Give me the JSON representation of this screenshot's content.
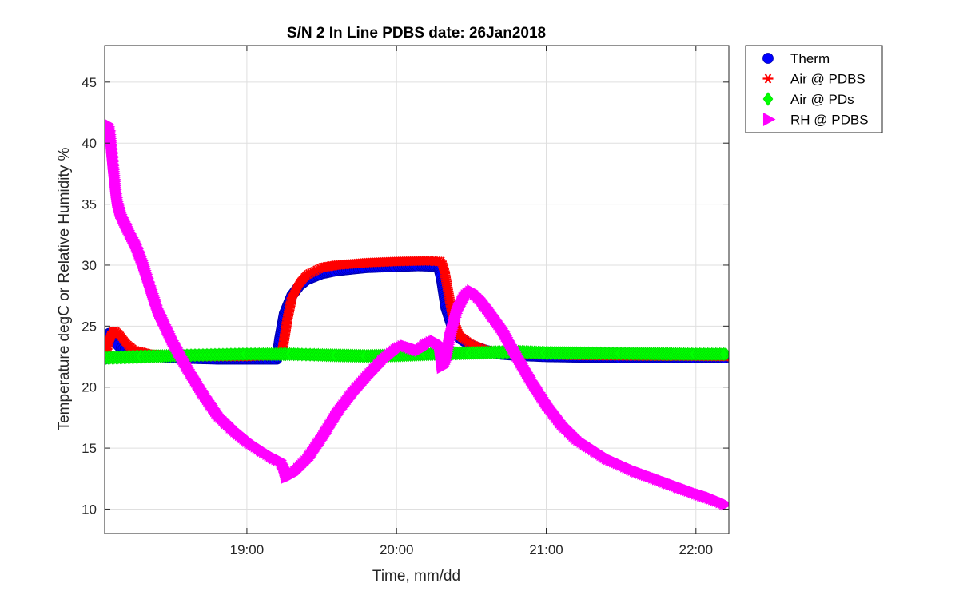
{
  "chart_data": {
    "type": "scatter",
    "title": "S/N 2 In Line PDBS date: 26Jan2018",
    "xlabel": "Time, mm/dd",
    "ylabel": "Temperature degC or Relative Humidity %",
    "x_unit": "hours of day",
    "xlim": [
      18.05,
      22.22
    ],
    "ylim": [
      8,
      48
    ],
    "x_ticks": [
      19,
      20,
      21,
      22
    ],
    "x_tick_labels": [
      "19:00",
      "20:00",
      "21:00",
      "22:00"
    ],
    "y_ticks": [
      10,
      15,
      20,
      25,
      30,
      35,
      40,
      45
    ],
    "y_tick_labels": [
      "10",
      "15",
      "20",
      "25",
      "30",
      "35",
      "40",
      "45"
    ],
    "grid": true,
    "legend_position": "outside-top-right",
    "series": [
      {
        "name": "Therm",
        "marker": "circle",
        "color": "#0000ff",
        "edge_color": "#0000aa",
        "points": [
          [
            18.05,
            22.3
          ],
          [
            18.06,
            24.2
          ],
          [
            18.08,
            24.4
          ],
          [
            18.1,
            24.0
          ],
          [
            18.12,
            23.7
          ],
          [
            18.15,
            23.3
          ],
          [
            18.2,
            23.0
          ],
          [
            18.3,
            22.7
          ],
          [
            18.5,
            22.4
          ],
          [
            18.8,
            22.3
          ],
          [
            19.0,
            22.3
          ],
          [
            19.15,
            22.3
          ],
          [
            19.2,
            22.3
          ],
          [
            19.22,
            24.0
          ],
          [
            19.25,
            26.0
          ],
          [
            19.3,
            27.5
          ],
          [
            19.35,
            28.3
          ],
          [
            19.4,
            28.8
          ],
          [
            19.5,
            29.3
          ],
          [
            19.6,
            29.55
          ],
          [
            19.8,
            29.8
          ],
          [
            20.0,
            29.9
          ],
          [
            20.15,
            29.95
          ],
          [
            20.28,
            29.9
          ],
          [
            20.3,
            28.9
          ],
          [
            20.33,
            26.5
          ],
          [
            20.37,
            25.0
          ],
          [
            20.42,
            24.0
          ],
          [
            20.5,
            23.4
          ],
          [
            20.6,
            23.0
          ],
          [
            20.7,
            22.7
          ],
          [
            20.8,
            22.6
          ],
          [
            21.0,
            22.5
          ],
          [
            21.5,
            22.4
          ],
          [
            22.0,
            22.4
          ],
          [
            22.2,
            22.4
          ]
        ]
      },
      {
        "name": "Air @ PDBS",
        "marker": "asterisk",
        "color": "#ff0000",
        "edge_color": "#ff0000",
        "points": [
          [
            18.06,
            22.8
          ],
          [
            18.08,
            23.8
          ],
          [
            18.1,
            24.5
          ],
          [
            18.12,
            24.6
          ],
          [
            18.15,
            24.3
          ],
          [
            18.2,
            23.5
          ],
          [
            18.25,
            23.0
          ],
          [
            18.35,
            22.7
          ],
          [
            18.6,
            22.5
          ],
          [
            19.0,
            22.5
          ],
          [
            19.2,
            22.6
          ],
          [
            19.24,
            23.2
          ],
          [
            19.27,
            25.5
          ],
          [
            19.3,
            27.3
          ],
          [
            19.35,
            28.5
          ],
          [
            19.4,
            29.2
          ],
          [
            19.5,
            29.8
          ],
          [
            19.6,
            30.0
          ],
          [
            19.8,
            30.2
          ],
          [
            20.0,
            30.3
          ],
          [
            20.2,
            30.35
          ],
          [
            20.3,
            30.3
          ],
          [
            20.32,
            29.5
          ],
          [
            20.35,
            27.5
          ],
          [
            20.38,
            25.5
          ],
          [
            20.42,
            24.2
          ],
          [
            20.5,
            23.5
          ],
          [
            20.6,
            23.0
          ],
          [
            20.8,
            22.7
          ],
          [
            21.2,
            22.6
          ],
          [
            22.2,
            22.5
          ]
        ]
      },
      {
        "name": "Air @ PDs",
        "marker": "diamond",
        "color": "#00ff00",
        "edge_color": "#00e000",
        "points": [
          [
            18.06,
            22.4
          ],
          [
            18.3,
            22.5
          ],
          [
            18.6,
            22.6
          ],
          [
            19.0,
            22.7
          ],
          [
            19.3,
            22.7
          ],
          [
            19.6,
            22.6
          ],
          [
            19.8,
            22.55
          ],
          [
            20.0,
            22.6
          ],
          [
            20.2,
            22.7
          ],
          [
            20.5,
            22.8
          ],
          [
            20.8,
            22.9
          ],
          [
            21.0,
            22.8
          ],
          [
            21.5,
            22.75
          ],
          [
            22.0,
            22.7
          ],
          [
            22.2,
            22.7
          ]
        ]
      },
      {
        "name": "RH @ PDBS",
        "marker": "triangle-right",
        "color": "#ff00ff",
        "edge_color": "#ff00ff",
        "points": [
          [
            18.05,
            40.6
          ],
          [
            18.06,
            41.6
          ],
          [
            18.07,
            41.5
          ],
          [
            18.08,
            41.0
          ],
          [
            18.09,
            39.6
          ],
          [
            18.1,
            38.3
          ],
          [
            18.11,
            37.2
          ],
          [
            18.12,
            36.0
          ],
          [
            18.13,
            35.2
          ],
          [
            18.15,
            34.3
          ],
          [
            18.2,
            33.0
          ],
          [
            18.25,
            31.8
          ],
          [
            18.3,
            30.2
          ],
          [
            18.35,
            28.3
          ],
          [
            18.4,
            26.4
          ],
          [
            18.5,
            23.8
          ],
          [
            18.6,
            21.6
          ],
          [
            18.7,
            19.6
          ],
          [
            18.8,
            17.8
          ],
          [
            18.9,
            16.6
          ],
          [
            19.0,
            15.6
          ],
          [
            19.1,
            14.8
          ],
          [
            19.18,
            14.2
          ],
          [
            19.22,
            14.0
          ],
          [
            19.24,
            13.5
          ],
          [
            19.26,
            12.6
          ],
          [
            19.3,
            12.8
          ],
          [
            19.4,
            14.0
          ],
          [
            19.5,
            15.8
          ],
          [
            19.6,
            17.8
          ],
          [
            19.7,
            19.4
          ],
          [
            19.8,
            20.8
          ],
          [
            19.9,
            22.1
          ],
          [
            20.0,
            23.1
          ],
          [
            20.05,
            23.4
          ],
          [
            20.1,
            23.2
          ],
          [
            20.15,
            23.0
          ],
          [
            20.2,
            23.5
          ],
          [
            20.25,
            23.8
          ],
          [
            20.28,
            23.5
          ],
          [
            20.3,
            21.6
          ],
          [
            20.32,
            22.0
          ],
          [
            20.35,
            24.0
          ],
          [
            20.4,
            26.2
          ],
          [
            20.45,
            27.4
          ],
          [
            20.5,
            27.9
          ],
          [
            20.55,
            27.3
          ],
          [
            20.6,
            26.5
          ],
          [
            20.7,
            24.8
          ],
          [
            20.8,
            22.6
          ],
          [
            20.9,
            20.5
          ],
          [
            21.0,
            18.6
          ],
          [
            21.1,
            17.0
          ],
          [
            21.2,
            15.8
          ],
          [
            21.4,
            14.2
          ],
          [
            21.6,
            13.1
          ],
          [
            21.8,
            12.2
          ],
          [
            22.0,
            11.3
          ],
          [
            22.1,
            10.9
          ],
          [
            22.2,
            10.4
          ]
        ]
      }
    ]
  }
}
